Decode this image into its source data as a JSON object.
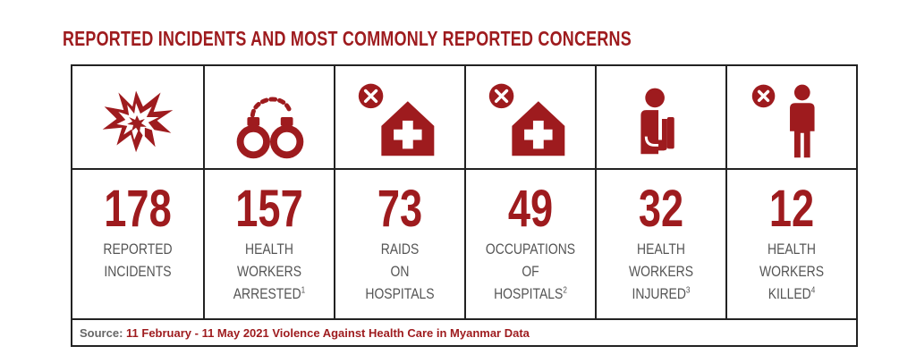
{
  "title": "REPORTED INCIDENTS AND MOST COMMONLY REPORTED CONCERNS",
  "colors": {
    "accent": "#9e1b1e",
    "text": "#555555",
    "border": "#222222"
  },
  "stats": [
    {
      "icon": "explosion-icon",
      "value": "178",
      "label": [
        "REPORTED",
        "INCIDENTS"
      ],
      "sup": ""
    },
    {
      "icon": "handcuffs-icon",
      "value": "157",
      "label": [
        "HEALTH",
        "WORKERS",
        "ARRESTED"
      ],
      "sup": "1"
    },
    {
      "icon": "hospital-raid-icon",
      "value": "73",
      "label": [
        "RAIDS",
        "ON",
        "HOSPITALS"
      ],
      "sup": ""
    },
    {
      "icon": "hospital-occupation-icon",
      "value": "49",
      "label": [
        "OCCUPATIONS",
        "OF",
        "HOSPITALS"
      ],
      "sup": "2"
    },
    {
      "icon": "injured-person-icon",
      "value": "32",
      "label": [
        "HEALTH",
        "WORKERS",
        "INJURED"
      ],
      "sup": "3"
    },
    {
      "icon": "killed-person-icon",
      "value": "12",
      "label": [
        "HEALTH",
        "WORKERS",
        "KILLED"
      ],
      "sup": "4"
    }
  ],
  "source": {
    "prefix": "Source:",
    "text": "11 February - 11 May 2021 Violence Against Health Care in Myanmar Data"
  }
}
